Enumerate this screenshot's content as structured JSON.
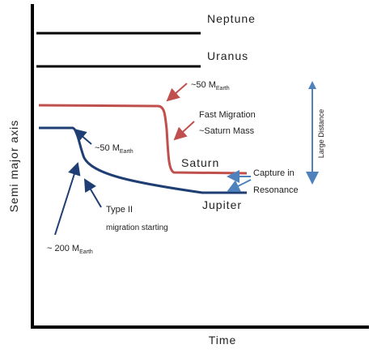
{
  "labels": {
    "y_axis": "Semi major axis",
    "x_axis": "Time",
    "neptune": "Neptune",
    "uranus": "Uranus",
    "saturn": "Saturn",
    "jupiter": "Jupiter",
    "saturn_mass": {
      "text": "~50 M",
      "subscript": "Earth"
    },
    "fast_migration": [
      "Fast Migration",
      "~Saturn Mass"
    ],
    "capture": [
      "Capture in",
      "Resonance"
    ],
    "jupiter_mass": {
      "text": "~50 M",
      "subscript": "Earth"
    },
    "type_ii": [
      "Type II",
      "migration starting"
    ],
    "core_mass": {
      "text": "~ 200 M",
      "subscript": "Earth"
    },
    "large_distance": "Large Distance"
  }
}
